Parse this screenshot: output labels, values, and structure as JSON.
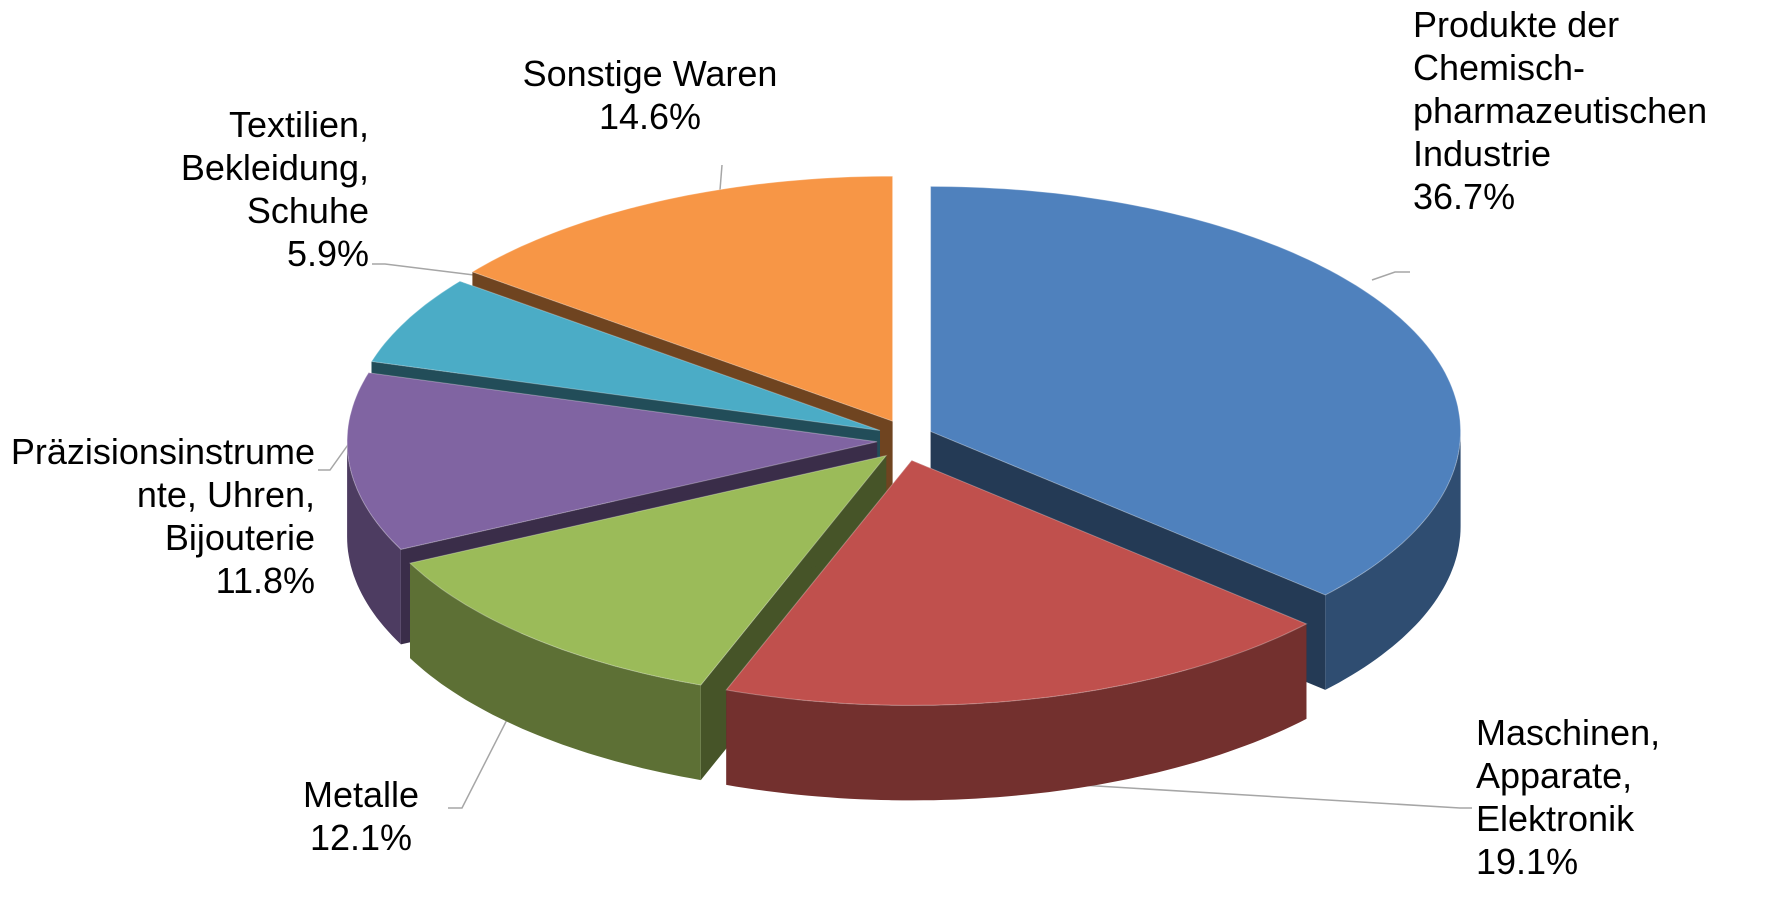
{
  "chart_data": {
    "type": "pie3d",
    "categories": [
      "Produkte der Chemisch-pharmazeutischen Industrie",
      "Maschinen, Apparate, Elektronik",
      "Metalle",
      "Präzisionsinstrumente, Uhren, Bijouterie",
      "Textilien, Bekleidung, Schuhe",
      "Sonstige Waren"
    ],
    "values": [
      36.7,
      19.1,
      12.1,
      11.8,
      5.9,
      14.6
    ],
    "value_labels": [
      "36.7%",
      "19.1%",
      "12.1%",
      "11.8%",
      "5.9%",
      "14.6%"
    ],
    "colors": [
      "#4f81bd",
      "#c0504d",
      "#9bbb59",
      "#8064a2",
      "#4bacc6",
      "#f79646"
    ]
  }
}
